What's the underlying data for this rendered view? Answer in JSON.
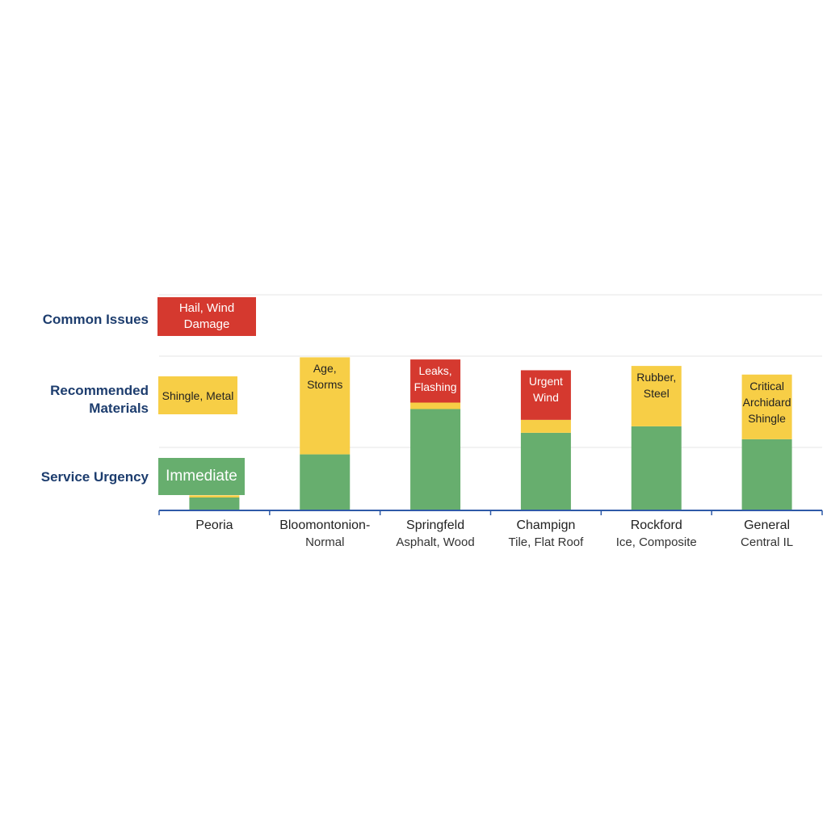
{
  "chart_data": {
    "type": "stacked_bar",
    "categories": [
      "Peoria",
      "Bloomontonion-",
      "Springfeld",
      "Champign",
      "Rockford",
      "General"
    ],
    "sublabels": [
      null,
      "Normal",
      "Asphalt, Wood",
      "Tile, Flat Roof",
      "Ice, Composite",
      "Central IL"
    ],
    "ylim": [
      0,
      100
    ],
    "series": [
      {
        "name": "Service Urgency",
        "color": "#67ae6e",
        "callout": "Immediate",
        "values": [
          6,
          26,
          47,
          36,
          39,
          33
        ],
        "labels": [
          null,
          null,
          null,
          null,
          null,
          null
        ]
      },
      {
        "name": "Recommended Materials",
        "color": "#f7ce46",
        "callout": "Shingle, Metal",
        "values": [
          1,
          45,
          3,
          6,
          28,
          30
        ],
        "labels": [
          null,
          "Age, Storms",
          null,
          null,
          "Rubber, Steel",
          "Critical Archidard Shingle"
        ]
      },
      {
        "name": "Common Issues",
        "color": "#d5392f",
        "callout": "Hail, Wind Damage",
        "values": [
          0,
          0,
          20,
          23,
          0,
          0
        ],
        "labels": [
          null,
          null,
          "Leaks, Flashing",
          "Urgent Wind",
          null,
          null
        ]
      }
    ]
  }
}
